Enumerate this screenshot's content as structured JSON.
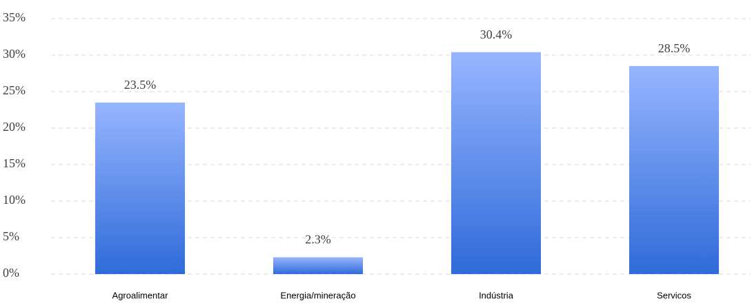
{
  "chart_data": {
    "type": "bar",
    "categories": [
      "Agroalimentar",
      "Energia/mineração",
      "Indústria",
      "Servicos"
    ],
    "values": [
      23.5,
      2.3,
      30.4,
      28.5
    ],
    "value_labels": [
      "23.5%",
      "2.3%",
      "30.4%",
      "28.5%"
    ],
    "color": [
      "#97b5ff",
      "#2f6bd9"
    ],
    "ylim": [
      0,
      35
    ],
    "yticks": [
      {
        "value": 0,
        "label": "0%"
      },
      {
        "value": 5,
        "label": "5%"
      },
      {
        "value": 10,
        "label": "10%"
      },
      {
        "value": 15,
        "label": "15%"
      },
      {
        "value": 20,
        "label": "20%"
      },
      {
        "value": 25,
        "label": "25%"
      },
      {
        "value": 30,
        "label": "30%"
      },
      {
        "value": 35,
        "label": "35%"
      }
    ],
    "grid": true
  }
}
